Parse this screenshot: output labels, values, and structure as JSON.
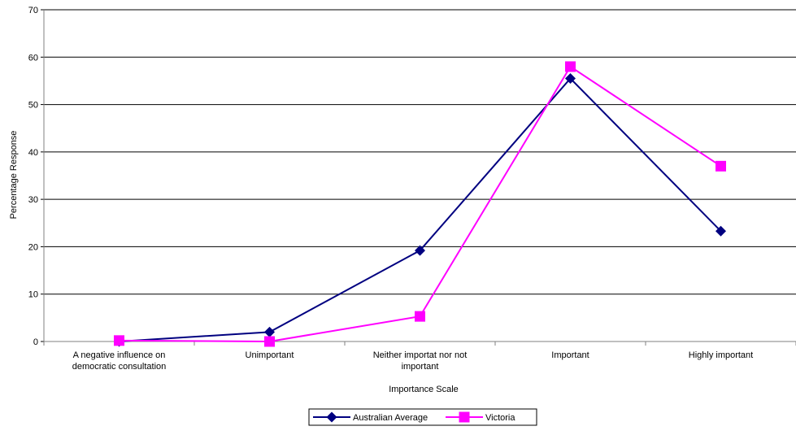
{
  "chart_data": {
    "type": "line",
    "title": "",
    "xlabel": "Importance Scale",
    "ylabel": "Percentage Response",
    "ylim": [
      0,
      70
    ],
    "yticks": [
      0,
      10,
      20,
      30,
      40,
      50,
      60,
      70
    ],
    "grid": true,
    "legend_position": "bottom-center",
    "categories": [
      [
        "A negative influence on",
        "democratic consultation"
      ],
      [
        "Unimportant"
      ],
      [
        "Neither importat nor not",
        "important"
      ],
      [
        "Important"
      ],
      [
        "Highly important"
      ]
    ],
    "series": [
      {
        "name": "Australian Average",
        "color": "#000080",
        "marker": "diamond",
        "values": [
          0,
          2,
          19.2,
          55.5,
          23.3
        ]
      },
      {
        "name": "Victoria",
        "color": "#ff00ff",
        "marker": "square",
        "values": [
          0.2,
          0,
          5.3,
          58,
          37
        ]
      }
    ]
  }
}
